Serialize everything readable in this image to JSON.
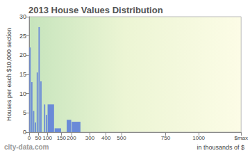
{
  "chart_data": {
    "type": "histogram",
    "title": "2013 House Values Distribution",
    "x_label": "in thousands of $",
    "y_label": "Houses per each $10,000 section",
    "annotations": [
      "city-data.com"
    ],
    "bins": [
      0,
      10,
      20,
      30,
      40,
      50,
      60,
      70,
      80,
      90,
      100,
      125,
      150,
      175,
      200,
      250
    ],
    "counts": [
      22,
      13,
      5.5,
      2.5,
      15.5,
      27.3,
      13.2,
      0,
      7.2,
      4.5,
      7.2,
      1,
      0,
      3.2,
      2.7
    ],
    "color": "#6a8ad8",
    "xlim": [
      0,
      1400
    ],
    "xticks": [
      0,
      50,
      100,
      150,
      200,
      300,
      400,
      500,
      750,
      1000,
      {
        "value": 1400,
        "label": "$max"
      }
    ],
    "ylim": [
      0,
      30
    ],
    "yticks": [
      0,
      5,
      10,
      15,
      20,
      25,
      30
    ],
    "grid": false
  }
}
